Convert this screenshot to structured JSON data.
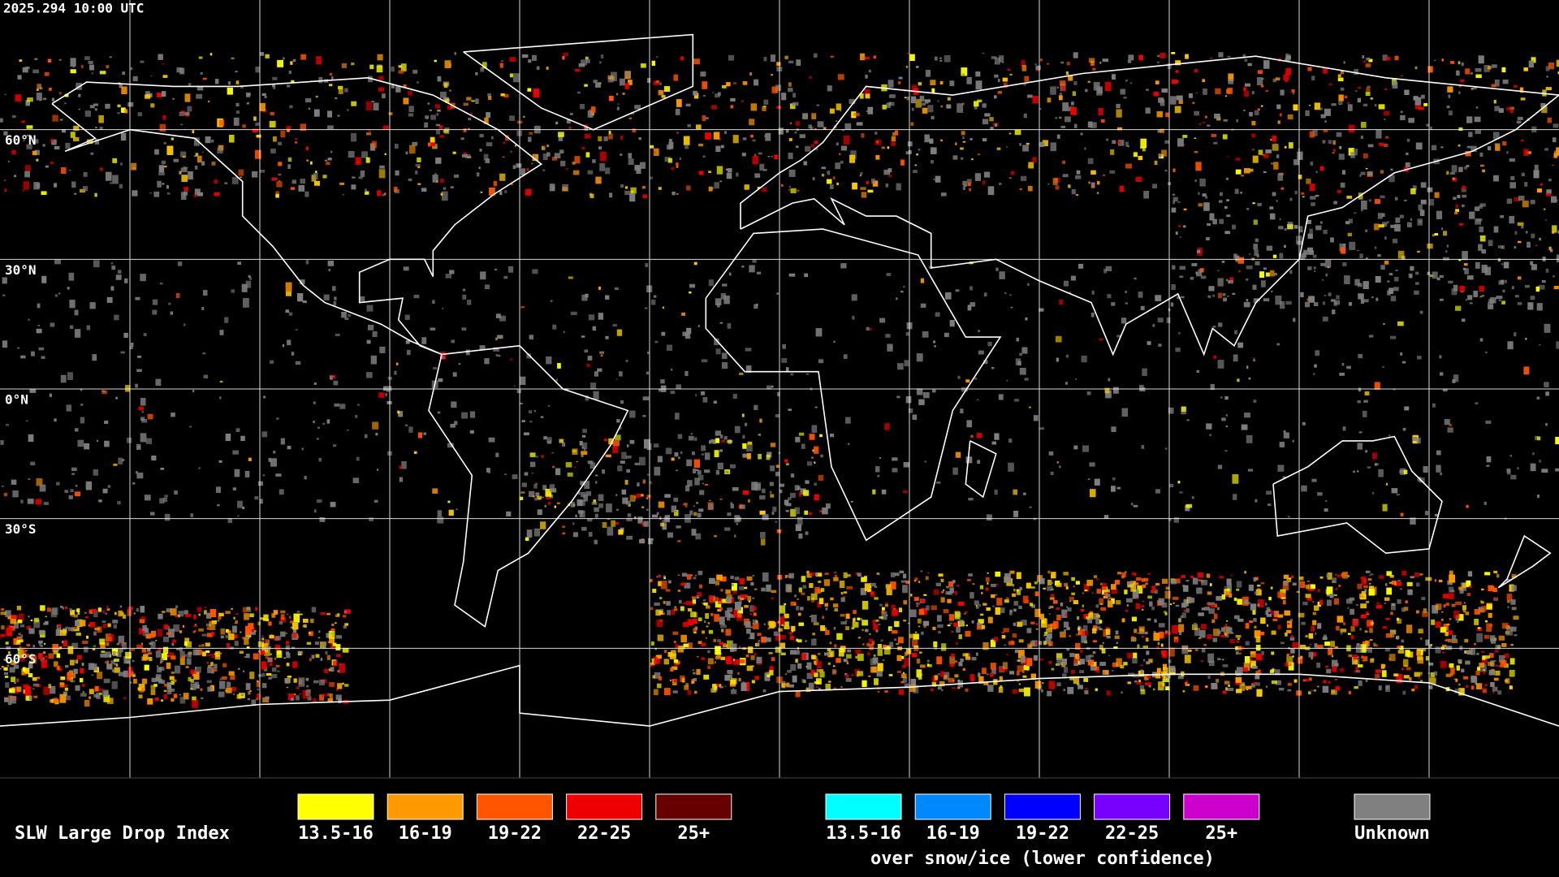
{
  "timestamp": "2025.294 10:00 UTC",
  "latitude_labels": [
    "60°N",
    "30°N",
    "0°N",
    "30°S",
    "60°S"
  ],
  "legend": {
    "title": "SLW Large Drop Index",
    "groups": [
      {
        "items": [
          {
            "label": "13.5-16",
            "color": "#ffff00"
          },
          {
            "label": "16-19",
            "color": "#ff9900"
          },
          {
            "label": "19-22",
            "color": "#ff5500"
          },
          {
            "label": "22-25",
            "color": "#ee0000"
          },
          {
            "label": "25+",
            "color": "#660000"
          }
        ]
      },
      {
        "items": [
          {
            "label": "13.5-16",
            "color": "#00ffff"
          },
          {
            "label": "16-19",
            "color": "#0088ff"
          },
          {
            "label": "19-22",
            "color": "#0000ff"
          },
          {
            "label": "22-25",
            "color": "#7700ff"
          },
          {
            "label": "25+",
            "color": "#cc00cc"
          }
        ],
        "caption": "over snow/ice (lower confidence)"
      },
      {
        "items": [
          {
            "label": "Unknown",
            "color": "#808080"
          }
        ]
      }
    ]
  }
}
